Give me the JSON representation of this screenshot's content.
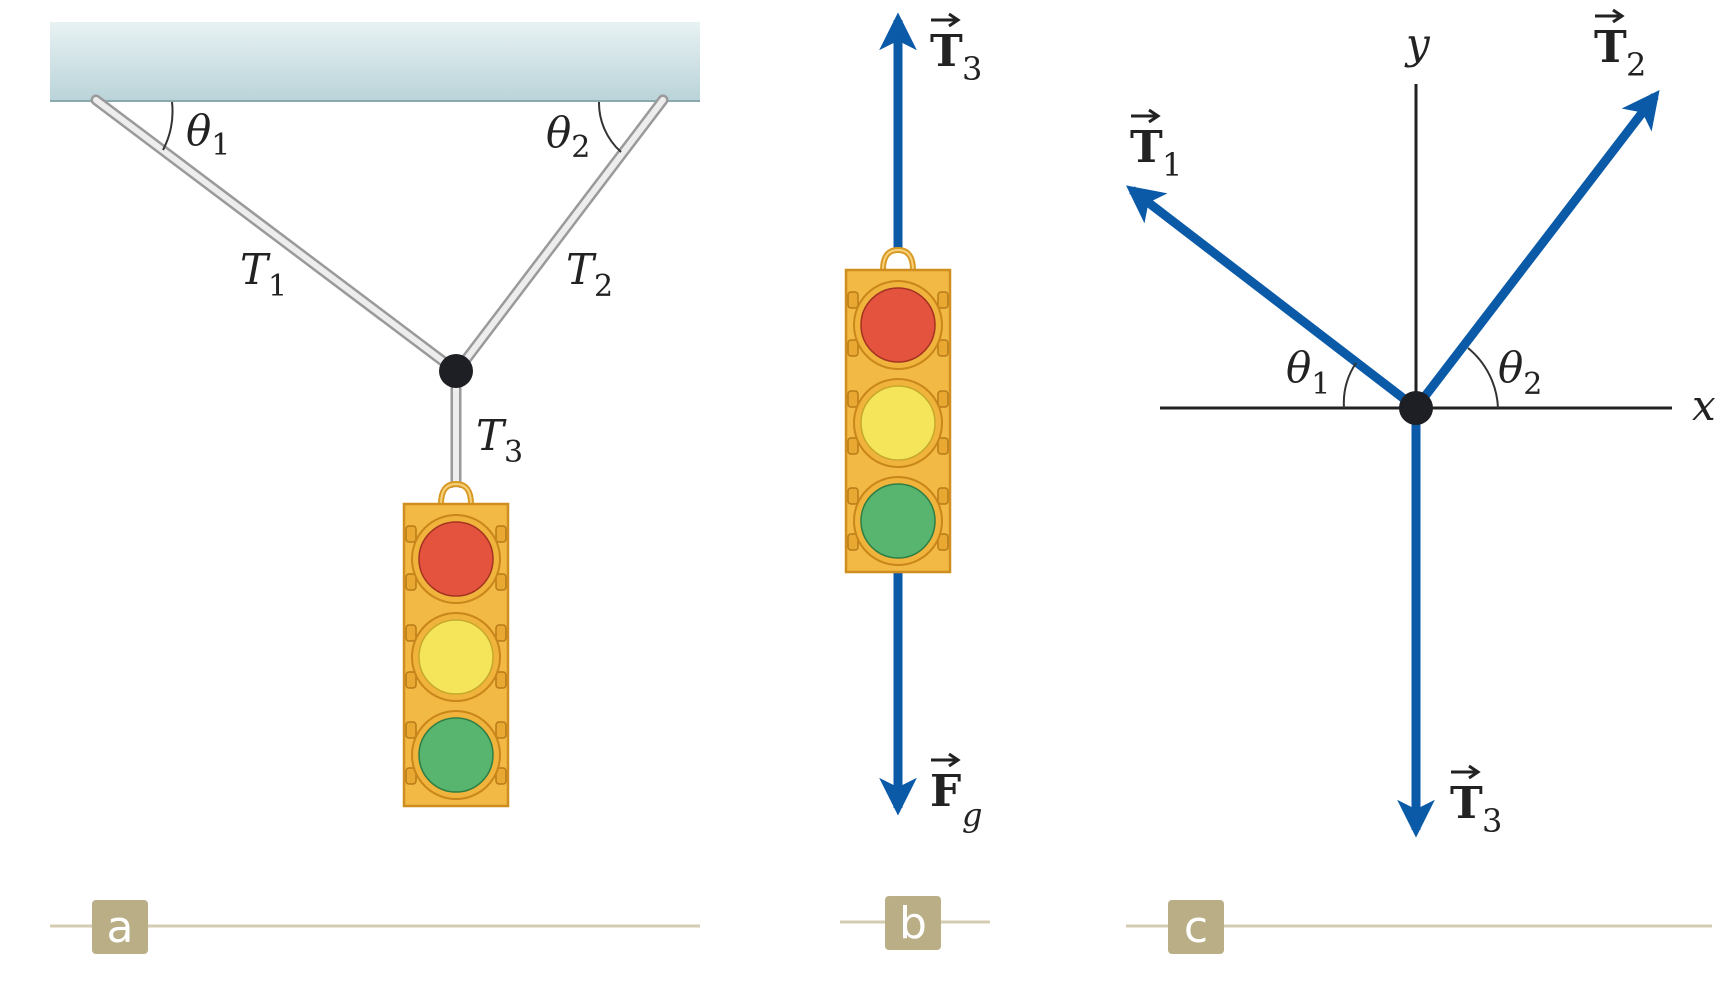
{
  "panels": {
    "a": {
      "tag": "a",
      "theta1": {
        "sym": "θ",
        "sub": "1"
      },
      "theta2": {
        "sym": "θ",
        "sub": "2"
      },
      "T1": {
        "sym": "T",
        "sub": "1"
      },
      "T2": {
        "sym": "T",
        "sub": "2"
      },
      "T3": {
        "sym": "T",
        "sub": "3"
      }
    },
    "b": {
      "tag": "b",
      "T3_vec": {
        "sym": "T",
        "sub": "3"
      },
      "Fg_vec": {
        "sym": "F",
        "sub": "g"
      }
    },
    "c": {
      "tag": "c",
      "x_axis": "x",
      "y_axis": "y",
      "T1_vec": {
        "sym": "T",
        "sub": "1"
      },
      "T2_vec": {
        "sym": "T",
        "sub": "2"
      },
      "T3_vec": {
        "sym": "T",
        "sub": "3"
      },
      "theta1": {
        "sym": "θ",
        "sub": "1"
      },
      "theta2": {
        "sym": "θ",
        "sub": "2"
      }
    }
  },
  "colors": {
    "vector": "#0a5aa8",
    "ceiling_top": "#bfd8dc",
    "ceiling_bottom": "#e7f1f2",
    "cable": "#c9c9c9",
    "light_housing": "#f0b43c",
    "red_lamp": "#e2543f",
    "yellow_lamp": "#f3e55a",
    "green_lamp": "#57b56e",
    "tag_bg": "#b8ad85",
    "baseline": "#cfc7ad"
  }
}
